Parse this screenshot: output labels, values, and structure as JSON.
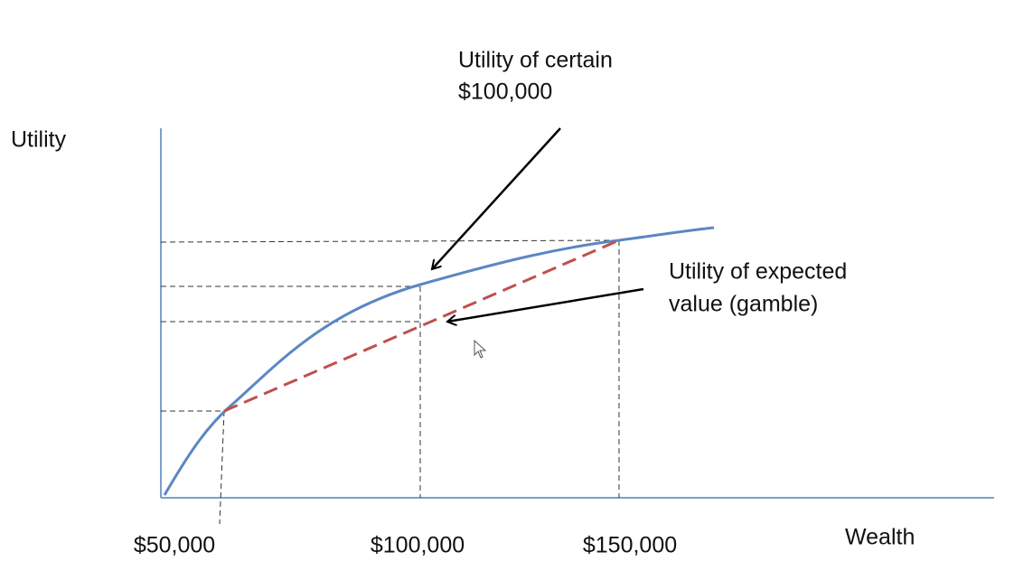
{
  "axes": {
    "y_label": "Utility",
    "x_label": "Wealth",
    "x_labels": [
      "$50,000",
      "$100,000",
      "$150,000"
    ]
  },
  "annotations": [
    {
      "lines": [
        "Utility of certain",
        "$100,000"
      ]
    },
    {
      "lines": [
        "Utility of expected",
        "value (gamble)"
      ]
    }
  ]
}
